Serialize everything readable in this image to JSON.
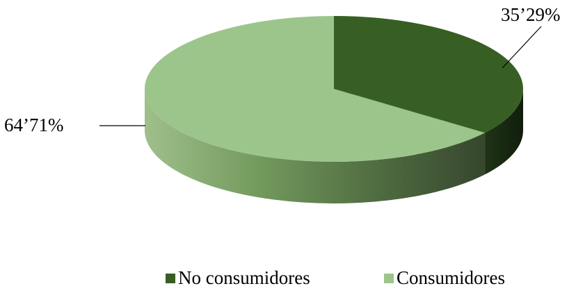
{
  "chart_data": {
    "type": "pie",
    "style": "3d",
    "title": "",
    "categories": [
      "No consumidores",
      "Consumidores"
    ],
    "values": [
      35.29,
      64.71
    ],
    "data_labels": [
      "35’29%",
      "64’71%"
    ],
    "legend": {
      "position": "bottom",
      "entries": [
        "No consumidores",
        "Consumidores"
      ]
    },
    "colors": {
      "No consumidores": "#375F23",
      "Consumidores": "#9CC58B"
    }
  }
}
